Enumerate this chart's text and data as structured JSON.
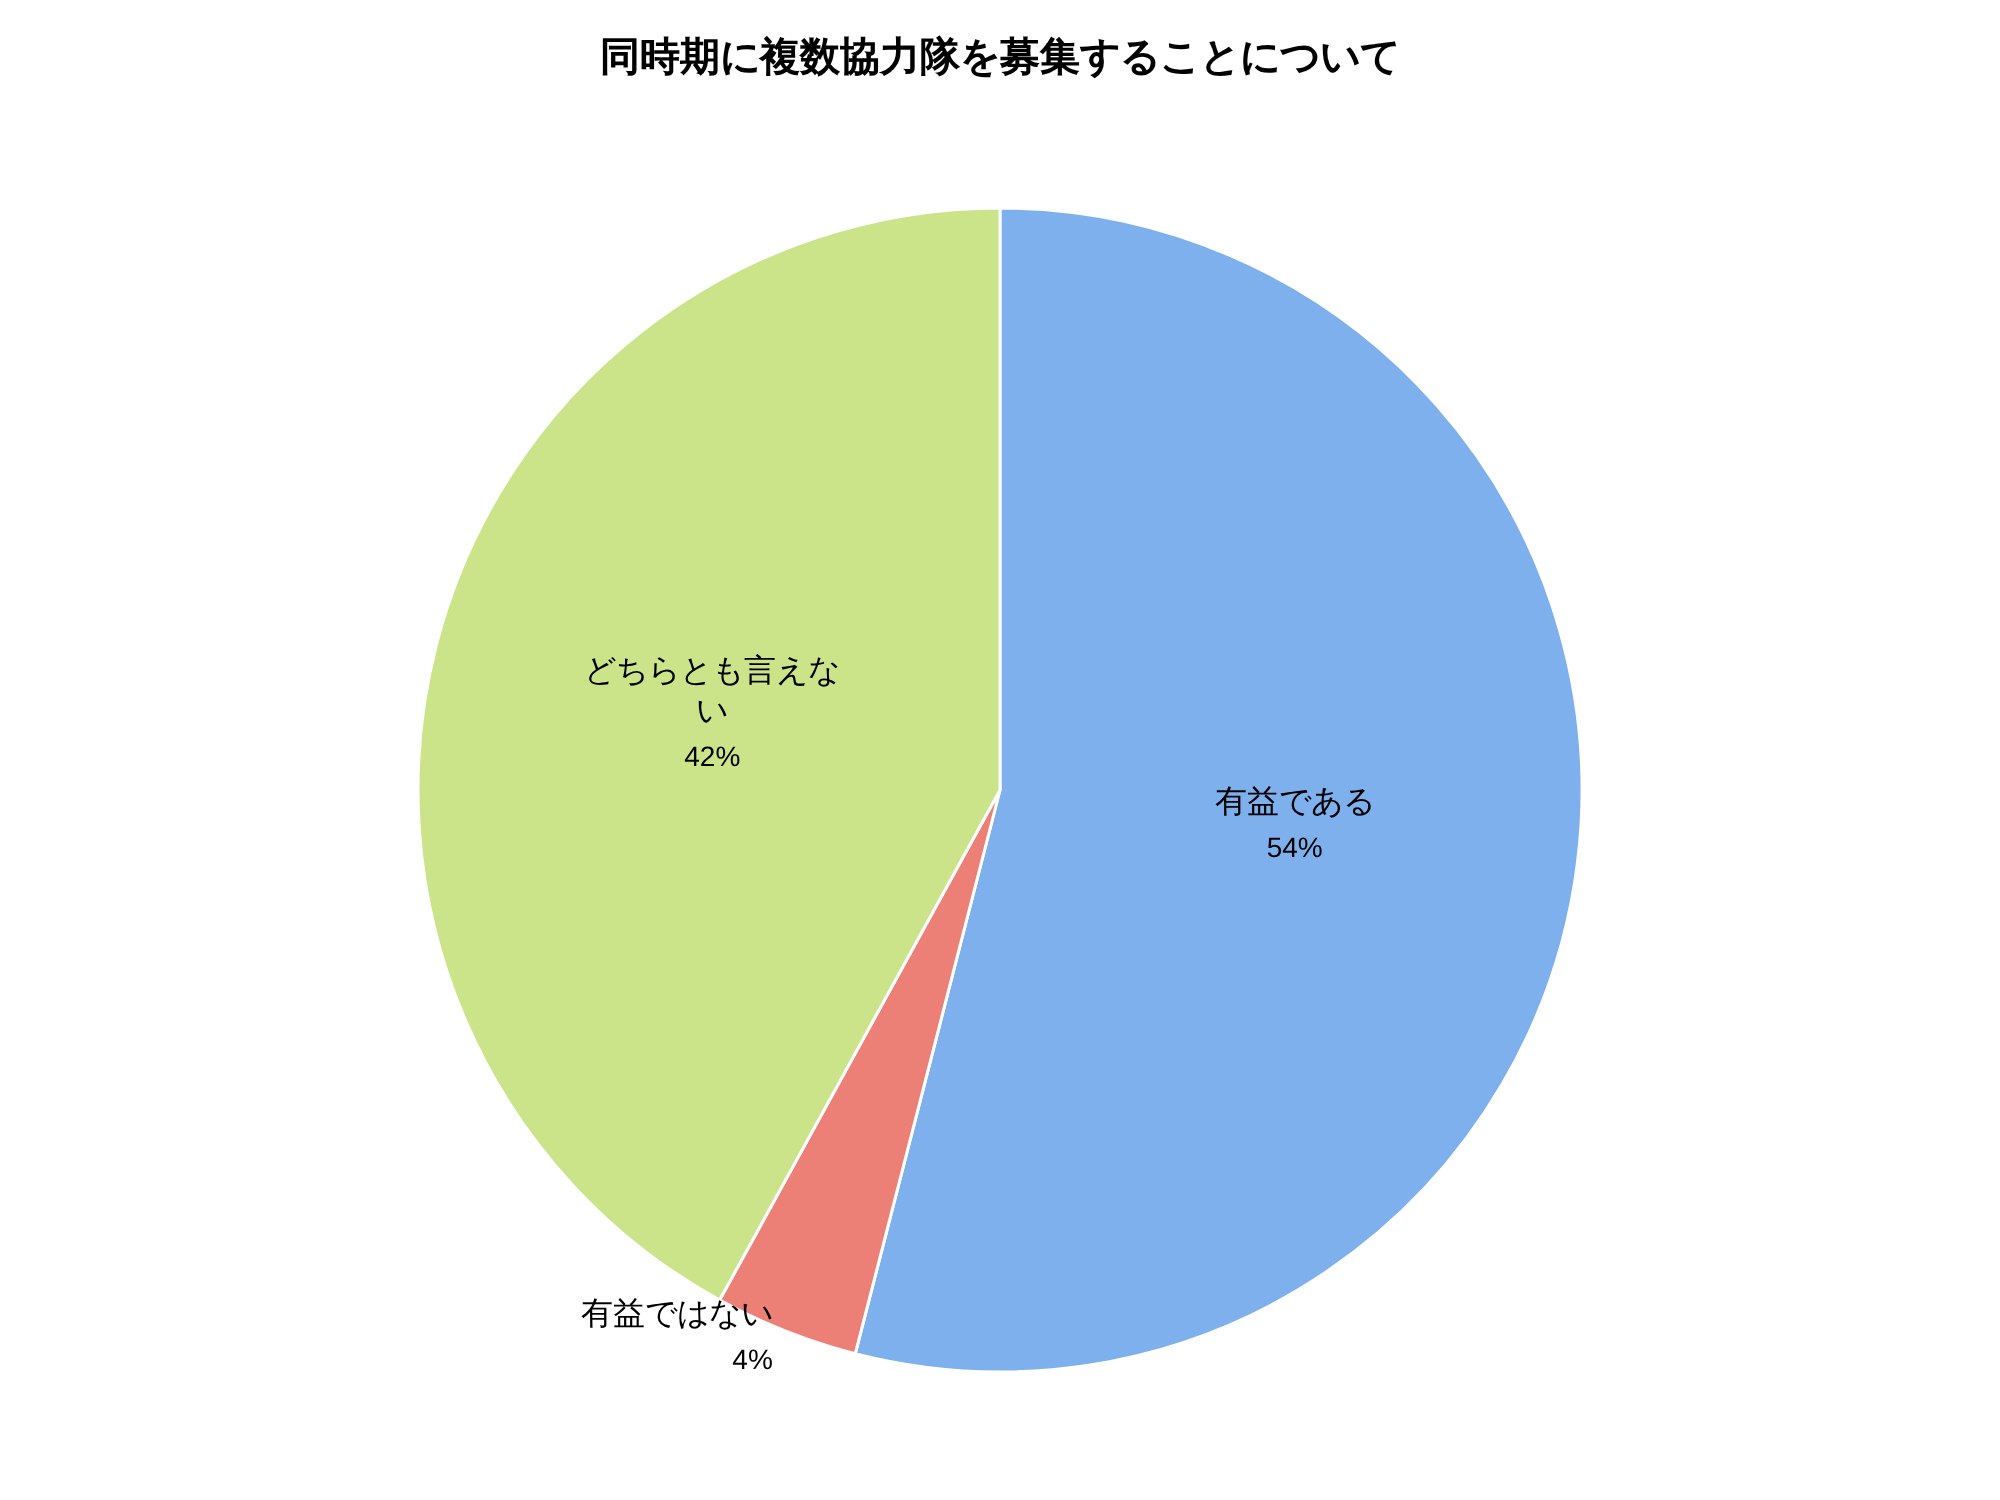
{
  "chart_data": {
    "type": "pie",
    "title": "同時期に複数協力隊を募集することについて",
    "categories": [
      "有益である",
      "有益ではない",
      "どちらとも言えない"
    ],
    "values": [
      54,
      4,
      42
    ],
    "value_labels": [
      "54%",
      "4%",
      "42%"
    ],
    "colors": [
      "#7db0ec",
      "#ec7f76",
      "#cbe48a"
    ],
    "legend": false
  }
}
